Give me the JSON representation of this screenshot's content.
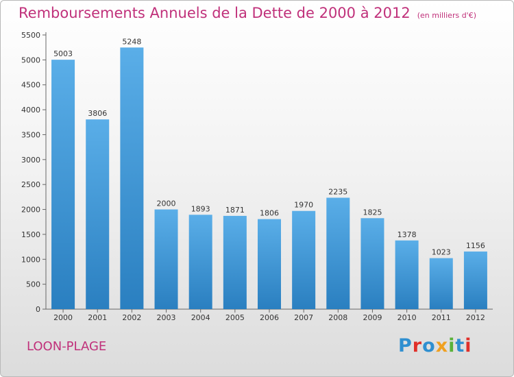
{
  "chart_data": {
    "type": "bar",
    "title": "Remboursements Annuels de la Dette de 2000 à 2012",
    "subtitle": "(en milliers d'€)",
    "categories": [
      "2000",
      "2001",
      "2002",
      "2003",
      "2004",
      "2005",
      "2006",
      "2007",
      "2008",
      "2009",
      "2010",
      "2011",
      "2012"
    ],
    "values": [
      5003,
      3806,
      5248,
      2000,
      1893,
      1871,
      1806,
      1970,
      2235,
      1825,
      1378,
      1023,
      1156
    ],
    "ylim": [
      0,
      5500
    ],
    "yticks": [
      0,
      500,
      1000,
      1500,
      2000,
      2500,
      3000,
      3500,
      4000,
      4500,
      5000,
      5500
    ],
    "grid": false,
    "colors": {
      "bar_top": "#5aaee8",
      "bar_bottom": "#2a7fc0",
      "title": "#c0307a"
    }
  },
  "footer": {
    "commune": "LOON-PLAGE",
    "logo": "Proxiti",
    "logo_colors": [
      "#2f8fd0",
      "#e0302a",
      "#2f8fd0",
      "#f0a020",
      "#5ab23a",
      "#2f8fd0",
      "#e0302a"
    ]
  }
}
